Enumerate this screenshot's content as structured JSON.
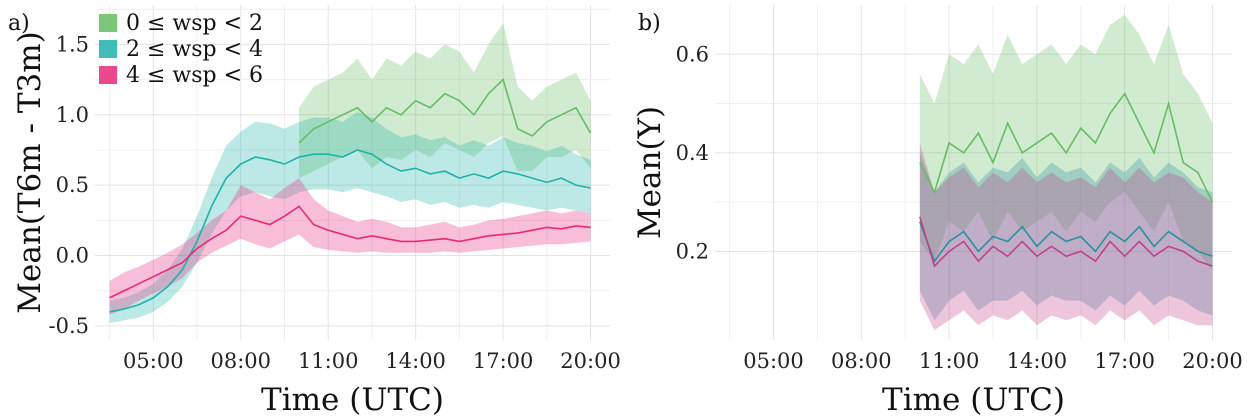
{
  "chart_data": [
    {
      "type": "line",
      "panel_label": "a)",
      "xlabel": "Time (UTC)",
      "ylabel": "Mean(T6m - T3m)",
      "xlim": [
        "03:00",
        "20:40"
      ],
      "ylim": [
        -0.6,
        1.78
      ],
      "xticks": [
        "05:00",
        "08:00",
        "11:00",
        "14:00",
        "17:00",
        "20:00"
      ],
      "yticks": [
        -0.5,
        0.0,
        0.5,
        1.0,
        1.5
      ],
      "ytick_labels": [
        "-0.5",
        "0.0",
        "0.5",
        "1.0",
        "1.5"
      ],
      "grid": true,
      "legend_position": "top-left",
      "legend": [
        "0 ≤ wsp < 2",
        "2 ≤ wsp < 4",
        "4 ≤ wsp < 6"
      ],
      "series": [
        {
          "name": "0 ≤ wsp < 2",
          "color": "#66bd63",
          "x": [
            "10:00",
            "10:30",
            "11:00",
            "11:30",
            "12:00",
            "12:30",
            "13:00",
            "13:30",
            "14:00",
            "14:30",
            "15:00",
            "15:30",
            "16:00",
            "16:30",
            "17:00",
            "17:30",
            "18:00",
            "18:30",
            "19:00",
            "19:30",
            "20:00"
          ],
          "mean": [
            0.8,
            0.9,
            0.95,
            1.0,
            1.05,
            0.95,
            1.05,
            1.0,
            1.1,
            1.05,
            1.15,
            1.1,
            1.0,
            1.15,
            1.25,
            0.9,
            0.85,
            0.95,
            1.0,
            1.05,
            0.87
          ],
          "lower": [
            0.55,
            0.6,
            0.65,
            0.7,
            0.75,
            0.62,
            0.7,
            0.68,
            0.75,
            0.7,
            0.8,
            0.75,
            0.7,
            0.8,
            0.85,
            0.6,
            0.6,
            0.7,
            0.7,
            0.75,
            0.62
          ],
          "upper": [
            1.05,
            1.2,
            1.25,
            1.3,
            1.4,
            1.25,
            1.4,
            1.35,
            1.45,
            1.4,
            1.5,
            1.45,
            1.3,
            1.5,
            1.65,
            1.2,
            1.1,
            1.2,
            1.25,
            1.3,
            1.1
          ]
        },
        {
          "name": "2 ≤ wsp < 4",
          "color": "#20b2aa",
          "x": [
            "03:30",
            "04:00",
            "04:30",
            "05:00",
            "05:30",
            "06:00",
            "06:30",
            "07:00",
            "07:30",
            "08:00",
            "08:30",
            "09:00",
            "09:30",
            "10:00",
            "10:30",
            "11:00",
            "11:30",
            "12:00",
            "12:30",
            "13:00",
            "13:30",
            "14:00",
            "14:30",
            "15:00",
            "15:30",
            "16:00",
            "16:30",
            "17:00",
            "17:30",
            "18:00",
            "18:30",
            "19:00",
            "19:30",
            "20:00"
          ],
          "mean": [
            -0.4,
            -0.38,
            -0.35,
            -0.3,
            -0.22,
            -0.1,
            0.1,
            0.35,
            0.55,
            0.65,
            0.7,
            0.68,
            0.65,
            0.7,
            0.72,
            0.72,
            0.7,
            0.75,
            0.72,
            0.65,
            0.6,
            0.62,
            0.58,
            0.6,
            0.55,
            0.58,
            0.55,
            0.6,
            0.58,
            0.55,
            0.52,
            0.55,
            0.5,
            0.48
          ],
          "lower": [
            -0.48,
            -0.46,
            -0.44,
            -0.4,
            -0.33,
            -0.22,
            -0.05,
            0.15,
            0.32,
            0.42,
            0.45,
            0.42,
            0.4,
            0.45,
            0.47,
            0.47,
            0.45,
            0.48,
            0.45,
            0.42,
            0.38,
            0.4,
            0.36,
            0.38,
            0.34,
            0.36,
            0.34,
            0.38,
            0.36,
            0.34,
            0.32,
            0.34,
            0.32,
            0.3
          ],
          "upper": [
            -0.32,
            -0.3,
            -0.26,
            -0.2,
            -0.1,
            0.05,
            0.28,
            0.55,
            0.78,
            0.88,
            0.95,
            0.94,
            0.9,
            0.95,
            0.98,
            0.98,
            0.95,
            1.02,
            0.98,
            0.9,
            0.84,
            0.86,
            0.82,
            0.84,
            0.78,
            0.82,
            0.78,
            0.84,
            0.8,
            0.78,
            0.74,
            0.78,
            0.72,
            0.68
          ]
        },
        {
          "name": "4 ≤ wsp < 6",
          "color": "#e7297a",
          "x": [
            "03:30",
            "04:00",
            "04:30",
            "05:00",
            "05:30",
            "06:00",
            "06:30",
            "07:00",
            "07:30",
            "08:00",
            "08:30",
            "09:00",
            "09:30",
            "10:00",
            "10:30",
            "11:00",
            "11:30",
            "12:00",
            "12:30",
            "13:00",
            "13:30",
            "14:00",
            "14:30",
            "15:00",
            "15:30",
            "16:00",
            "16:30",
            "17:00",
            "17:30",
            "18:00",
            "18:30",
            "19:00",
            "19:30",
            "20:00"
          ],
          "mean": [
            -0.3,
            -0.25,
            -0.2,
            -0.15,
            -0.1,
            -0.05,
            0.05,
            0.12,
            0.18,
            0.28,
            0.25,
            0.22,
            0.28,
            0.35,
            0.22,
            0.18,
            0.15,
            0.12,
            0.14,
            0.12,
            0.1,
            0.1,
            0.11,
            0.12,
            0.1,
            0.12,
            0.14,
            0.15,
            0.16,
            0.18,
            0.2,
            0.19,
            0.21,
            0.2
          ],
          "lower": [
            -0.42,
            -0.38,
            -0.32,
            -0.27,
            -0.22,
            -0.16,
            -0.05,
            0.02,
            0.07,
            0.12,
            0.08,
            0.05,
            0.1,
            0.15,
            0.06,
            0.04,
            0.03,
            0.02,
            0.03,
            0.02,
            0.02,
            0.02,
            0.02,
            0.03,
            0.02,
            0.03,
            0.04,
            0.05,
            0.06,
            0.07,
            0.08,
            0.08,
            0.09,
            0.1
          ],
          "upper": [
            -0.18,
            -0.12,
            -0.08,
            -0.03,
            0.02,
            0.08,
            0.16,
            0.25,
            0.32,
            0.5,
            0.45,
            0.4,
            0.48,
            0.55,
            0.4,
            0.32,
            0.28,
            0.24,
            0.26,
            0.24,
            0.2,
            0.2,
            0.22,
            0.24,
            0.2,
            0.22,
            0.25,
            0.26,
            0.28,
            0.3,
            0.32,
            0.3,
            0.32,
            0.3
          ]
        }
      ]
    },
    {
      "type": "line",
      "panel_label": "b)",
      "xlabel": "Time (UTC)",
      "ylabel": "Mean(Y)",
      "xlim": [
        "03:00",
        "20:40"
      ],
      "ylim": [
        0.02,
        0.7
      ],
      "xticks": [
        "05:00",
        "08:00",
        "11:00",
        "14:00",
        "17:00",
        "20:00"
      ],
      "yticks": [
        0.2,
        0.4,
        0.6
      ],
      "ytick_labels": [
        "0.2",
        "0.4",
        "0.6"
      ],
      "grid": true,
      "series": [
        {
          "name": "0 ≤ wsp < 2",
          "color": "#66bd63",
          "x": [
            "10:00",
            "10:30",
            "11:00",
            "11:30",
            "12:00",
            "12:30",
            "13:00",
            "13:30",
            "14:00",
            "14:30",
            "15:00",
            "15:30",
            "16:00",
            "16:30",
            "17:00",
            "17:30",
            "18:00",
            "18:30",
            "19:00",
            "19:30",
            "20:00"
          ],
          "mean": [
            0.38,
            0.32,
            0.42,
            0.4,
            0.44,
            0.38,
            0.46,
            0.4,
            0.42,
            0.44,
            0.4,
            0.45,
            0.42,
            0.48,
            0.52,
            0.46,
            0.4,
            0.5,
            0.38,
            0.36,
            0.3
          ],
          "lower": [
            0.22,
            0.18,
            0.26,
            0.24,
            0.28,
            0.22,
            0.28,
            0.24,
            0.26,
            0.28,
            0.24,
            0.28,
            0.26,
            0.3,
            0.32,
            0.28,
            0.24,
            0.3,
            0.22,
            0.2,
            0.16
          ],
          "upper": [
            0.56,
            0.5,
            0.6,
            0.58,
            0.62,
            0.56,
            0.64,
            0.58,
            0.6,
            0.62,
            0.58,
            0.62,
            0.6,
            0.66,
            0.68,
            0.64,
            0.58,
            0.66,
            0.56,
            0.52,
            0.46
          ]
        },
        {
          "name": "2 ≤ wsp < 4",
          "color": "#2c8fa0",
          "x": [
            "10:00",
            "10:30",
            "11:00",
            "11:30",
            "12:00",
            "12:30",
            "13:00",
            "13:30",
            "14:00",
            "14:30",
            "15:00",
            "15:30",
            "16:00",
            "16:30",
            "17:00",
            "17:30",
            "18:00",
            "18:30",
            "19:00",
            "19:30",
            "20:00"
          ],
          "mean": [
            0.26,
            0.18,
            0.22,
            0.24,
            0.2,
            0.23,
            0.22,
            0.25,
            0.21,
            0.24,
            0.22,
            0.23,
            0.2,
            0.24,
            0.22,
            0.25,
            0.21,
            0.24,
            0.22,
            0.2,
            0.19
          ],
          "lower": [
            0.12,
            0.06,
            0.1,
            0.12,
            0.08,
            0.1,
            0.1,
            0.12,
            0.09,
            0.11,
            0.1,
            0.1,
            0.08,
            0.11,
            0.09,
            0.12,
            0.09,
            0.11,
            0.1,
            0.08,
            0.07
          ],
          "upper": [
            0.4,
            0.32,
            0.36,
            0.38,
            0.34,
            0.37,
            0.36,
            0.39,
            0.35,
            0.38,
            0.36,
            0.37,
            0.34,
            0.38,
            0.36,
            0.39,
            0.35,
            0.38,
            0.36,
            0.33,
            0.32
          ]
        },
        {
          "name": "4 ≤ wsp < 6",
          "color": "#c2418a",
          "x": [
            "10:00",
            "10:30",
            "11:00",
            "11:30",
            "12:00",
            "12:30",
            "13:00",
            "13:30",
            "14:00",
            "14:30",
            "15:00",
            "15:30",
            "16:00",
            "16:30",
            "17:00",
            "17:30",
            "18:00",
            "18:30",
            "19:00",
            "19:30",
            "20:00"
          ],
          "mean": [
            0.27,
            0.17,
            0.2,
            0.22,
            0.18,
            0.21,
            0.19,
            0.22,
            0.19,
            0.21,
            0.19,
            0.2,
            0.18,
            0.22,
            0.19,
            0.22,
            0.19,
            0.21,
            0.2,
            0.18,
            0.17
          ],
          "lower": [
            0.1,
            0.04,
            0.06,
            0.08,
            0.05,
            0.07,
            0.06,
            0.08,
            0.05,
            0.07,
            0.06,
            0.07,
            0.05,
            0.08,
            0.06,
            0.08,
            0.05,
            0.07,
            0.06,
            0.05,
            0.05
          ],
          "upper": [
            0.42,
            0.32,
            0.35,
            0.37,
            0.33,
            0.36,
            0.34,
            0.37,
            0.34,
            0.36,
            0.34,
            0.35,
            0.33,
            0.37,
            0.34,
            0.37,
            0.34,
            0.36,
            0.35,
            0.32,
            0.3
          ]
        }
      ]
    }
  ]
}
